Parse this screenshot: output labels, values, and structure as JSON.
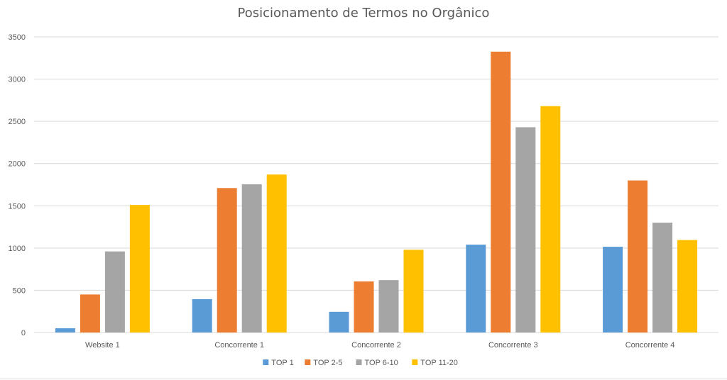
{
  "chart_data": {
    "type": "bar",
    "title": "Posicionamento de Termos no Orgânico",
    "xlabel": "",
    "ylabel": "",
    "categories": [
      "Website 1",
      "Concorrente 1",
      "Concorrente 2",
      "Concorrente 3",
      "Concorrente 4"
    ],
    "series": [
      {
        "name": "TOP 1",
        "color": "#5B9BD5",
        "values": [
          50,
          395,
          245,
          1040,
          1015
        ]
      },
      {
        "name": "TOP 2-5",
        "color": "#ED7D31",
        "values": [
          450,
          1710,
          605,
          3325,
          1800
        ]
      },
      {
        "name": "TOP 6-10",
        "color": "#A5A5A5",
        "values": [
          960,
          1755,
          620,
          2430,
          1300
        ]
      },
      {
        "name": "TOP 11-20",
        "color": "#FFC000",
        "values": [
          1510,
          1870,
          980,
          2680,
          1095
        ]
      }
    ],
    "ylim": [
      0,
      3500
    ],
    "yticks": [
      0,
      500,
      1000,
      1500,
      2000,
      2500,
      3000,
      3500
    ],
    "grid": true,
    "legend_position": "bottom"
  }
}
